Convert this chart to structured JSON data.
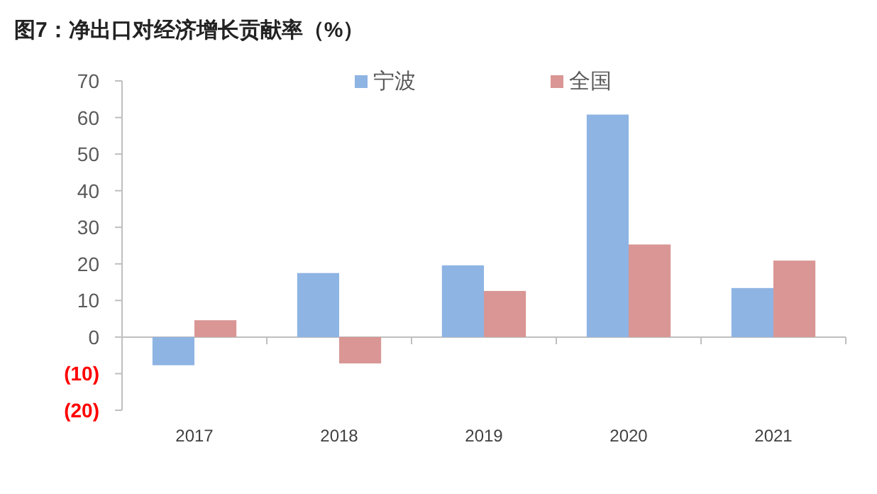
{
  "chart_data": {
    "type": "bar",
    "title": "图7：净出口对经济增长贡献率（%）",
    "categories": [
      "2017",
      "2018",
      "2019",
      "2020",
      "2021"
    ],
    "series": [
      {
        "name": "宁波",
        "color": "#8eb4e3",
        "values": [
          -7.7,
          17.5,
          19.6,
          60.8,
          13.4
        ]
      },
      {
        "name": "全国",
        "color": "#d99694",
        "values": [
          4.6,
          -7.2,
          12.6,
          25.3,
          20.9
        ]
      }
    ],
    "ylim": [
      -20,
      70
    ],
    "yticks": [
      {
        "value": -20,
        "label": "(20)"
      },
      {
        "value": -10,
        "label": "(10)"
      },
      0,
      10,
      20,
      30,
      40,
      50,
      60,
      70
    ],
    "legend": "top"
  }
}
